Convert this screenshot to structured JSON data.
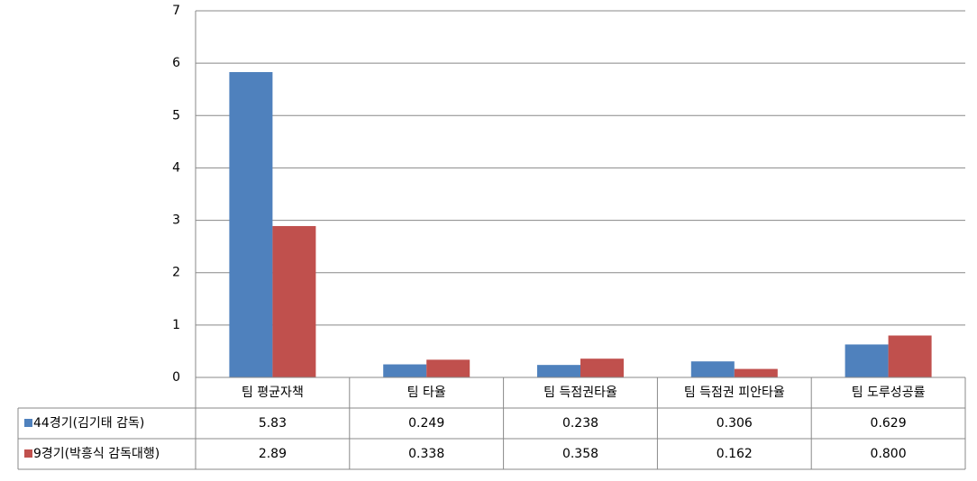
{
  "chart_data": {
    "type": "bar",
    "categories": [
      "팀 평균자책",
      "팀 타율",
      "팀 득점권타율",
      "팀 득점권 피안타율",
      "팀 도루성공률"
    ],
    "series": [
      {
        "name": "44경기(김기태 감독)",
        "color": "#4f81bd",
        "values": [
          5.83,
          0.249,
          0.238,
          0.306,
          0.629
        ],
        "value_labels": [
          "5.83",
          "0.249",
          "0.238",
          "0.306",
          "0.629"
        ]
      },
      {
        "name": "9경기(박흥식 감독대행)",
        "color": "#c0504d",
        "values": [
          2.89,
          0.338,
          0.358,
          0.162,
          0.8
        ],
        "value_labels": [
          "2.89",
          "0.338",
          "0.358",
          "0.162",
          "0.800"
        ]
      }
    ],
    "ylim": [
      0,
      7
    ],
    "yticks": [
      0,
      1,
      2,
      3,
      4,
      5,
      6,
      7
    ],
    "grid": true,
    "data_table": true
  }
}
